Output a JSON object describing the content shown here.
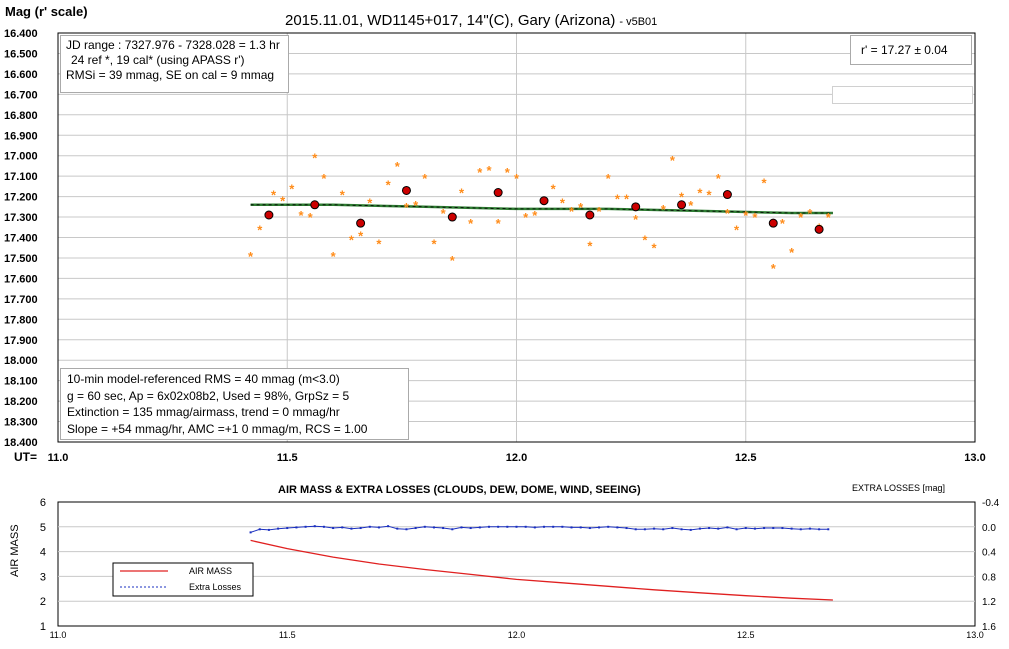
{
  "charts": {
    "main": {
      "ylabel": "Mag (r' scale)",
      "xlabel": "UT=",
      "title": "2015.11.01, WD1145+017, 14\"(C), Gary (Arizona)",
      "title_suffix": "- v5B01",
      "xlim": [
        11.0,
        13.0
      ],
      "ylim": [
        16.4,
        18.4
      ],
      "xticks": [
        "11.0",
        "11.5",
        "12.0",
        "12.5",
        "13.0"
      ],
      "yticks": [
        "16.400",
        "16.500",
        "16.600",
        "16.700",
        "16.800",
        "16.900",
        "17.000",
        "17.100",
        "17.200",
        "17.300",
        "17.400",
        "17.500",
        "17.600",
        "17.700",
        "17.800",
        "17.900",
        "18.000",
        "18.100",
        "18.200",
        "18.300",
        "18.400"
      ]
    },
    "lower": {
      "title": "AIR MASS & EXTRA LOSSES (CLOUDS, DEW, DOME, WIND, SEEING)",
      "ylabel_left": "AIR MASS",
      "ylabel_right": "EXTRA LOSSES [mag]",
      "xlim": [
        11.0,
        13.0
      ],
      "ylim_left": [
        1,
        6
      ],
      "ylim_right": [
        1.6,
        -0.4
      ],
      "xticks": [
        "11.0",
        "11.5",
        "12.0",
        "12.5",
        "13.0"
      ],
      "yticks_left": [
        "6",
        "5",
        "4",
        "3",
        "2",
        "1"
      ],
      "yticks_right": [
        "-0.4",
        "0.0",
        "0.4",
        "0.8",
        "1.2",
        "1.6"
      ],
      "legend": [
        "AIR MASS",
        "Extra Losses"
      ]
    }
  },
  "info_box_top": {
    "line1": "JD range : 7327.976 - 7328.028 = 1.3 hr",
    "line2": "24 ref *, 19 cal* (using APASS r')",
    "line3": "RMSi = 39 mmag, SE on cal = 9 mmag"
  },
  "mag_box": {
    "text": "r' = 17.27 ± 0.04"
  },
  "info_box_bottom": {
    "line1": "10-min model-referenced RMS = 40 mmag (m<3.0)",
    "line2": "g = 60 sec, Ap = 6x02x08b2, Used = 98%,  GrpSz = 5",
    "line3": "Extinction = 135 mmag/airmass, trend = 0 mmag/hr",
    "line4": "Slope = +54 mmag/hr, AMC =+1 0 mmag/m, RCS = 1.00"
  },
  "colors": {
    "raw_points": "#ff8c1a",
    "binned_points": "#cc0000",
    "trend_line": "#2e7d32",
    "airmass": "#e02020",
    "extra_losses": "#1a2fc0",
    "grid": "#c8c8c8"
  },
  "chart_data": [
    {
      "type": "scatter",
      "title": "2015.11.01, WD1145+017, 14\"(C), Gary (Arizona) - v5B01",
      "xlabel": "UT=",
      "ylabel": "Mag (r' scale)",
      "xlim": [
        11.0,
        13.0
      ],
      "ylim": [
        18.4,
        16.4
      ],
      "y_inverted": true,
      "grid": true,
      "series": [
        {
          "name": "raw",
          "marker": "asterisk",
          "x": [
            11.42,
            11.44,
            11.47,
            11.49,
            11.51,
            11.53,
            11.55,
            11.56,
            11.58,
            11.6,
            11.62,
            11.64,
            11.66,
            11.68,
            11.7,
            11.72,
            11.74,
            11.76,
            11.78,
            11.8,
            11.82,
            11.84,
            11.86,
            11.88,
            11.9,
            11.92,
            11.94,
            11.96,
            11.98,
            12.0,
            12.02,
            12.04,
            12.06,
            12.08,
            12.1,
            12.12,
            12.14,
            12.16,
            12.18,
            12.2,
            12.22,
            12.24,
            12.26,
            12.28,
            12.3,
            12.32,
            12.34,
            12.36,
            12.38,
            12.4,
            12.42,
            12.44,
            12.46,
            12.48,
            12.5,
            12.52,
            12.54,
            12.56,
            12.58,
            12.6,
            12.62,
            12.64,
            12.66,
            12.68
          ],
          "values": [
            17.49,
            17.36,
            17.19,
            17.22,
            17.16,
            17.29,
            17.3,
            17.01,
            17.11,
            17.49,
            17.19,
            17.41,
            17.39,
            17.23,
            17.43,
            17.14,
            17.05,
            17.25,
            17.24,
            17.11,
            17.43,
            17.28,
            17.51,
            17.18,
            17.33,
            17.08,
            17.07,
            17.33,
            17.08,
            17.11,
            17.3,
            17.29,
            17.23,
            17.16,
            17.23,
            17.27,
            17.25,
            17.44,
            17.27,
            17.11,
            17.21,
            17.21,
            17.31,
            17.41,
            17.45,
            17.26,
            17.02,
            17.2,
            17.24,
            17.18,
            17.19,
            17.11,
            17.28,
            17.36,
            17.29,
            17.3,
            17.13,
            17.55,
            17.33,
            17.47,
            17.3,
            17.28,
            17.35,
            17.3
          ]
        },
        {
          "name": "binned",
          "marker": "circle",
          "x": [
            11.46,
            11.56,
            11.66,
            11.76,
            11.86,
            11.96,
            12.06,
            12.16,
            12.26,
            12.36,
            12.46,
            12.56,
            12.66
          ],
          "values": [
            17.29,
            17.24,
            17.33,
            17.17,
            17.3,
            17.18,
            17.22,
            17.29,
            17.25,
            17.24,
            17.19,
            17.33,
            17.36
          ]
        },
        {
          "name": "trend",
          "type": "line",
          "x": [
            11.42,
            11.6,
            11.8,
            12.0,
            12.2,
            12.4,
            12.6,
            12.69
          ],
          "values": [
            17.24,
            17.24,
            17.25,
            17.26,
            17.26,
            17.27,
            17.28,
            17.28
          ]
        }
      ]
    },
    {
      "type": "line",
      "title": "AIR MASS & EXTRA LOSSES (CLOUDS, DEW, DOME, WIND, SEEING)",
      "xlabel": "",
      "ylabel": "AIR MASS",
      "ylabel_right": "EXTRA LOSSES [mag]",
      "xlim": [
        11.0,
        13.0
      ],
      "ylim": [
        1,
        6
      ],
      "ylim_right": [
        1.6,
        -0.4
      ],
      "legend_position": "left",
      "series": [
        {
          "name": "AIR MASS",
          "axis": "left",
          "x": [
            11.42,
            11.5,
            11.6,
            11.7,
            11.8,
            11.9,
            12.0,
            12.1,
            12.2,
            12.3,
            12.4,
            12.5,
            12.6,
            12.69
          ],
          "values": [
            4.45,
            4.12,
            3.78,
            3.5,
            3.28,
            3.08,
            2.88,
            2.74,
            2.6,
            2.46,
            2.34,
            2.22,
            2.12,
            2.05
          ]
        },
        {
          "name": "Extra Losses",
          "axis": "right",
          "x": [
            11.42,
            11.44,
            11.46,
            11.48,
            11.5,
            11.52,
            11.54,
            11.56,
            11.58,
            11.6,
            11.62,
            11.64,
            11.66,
            11.68,
            11.7,
            11.72,
            11.74,
            11.76,
            11.78,
            11.8,
            11.82,
            11.84,
            11.86,
            11.88,
            11.9,
            11.92,
            11.94,
            11.96,
            11.98,
            12.0,
            12.02,
            12.04,
            12.06,
            12.08,
            12.1,
            12.12,
            12.14,
            12.16,
            12.18,
            12.2,
            12.22,
            12.24,
            12.26,
            12.28,
            12.3,
            12.32,
            12.34,
            12.36,
            12.38,
            12.4,
            12.42,
            12.44,
            12.46,
            12.48,
            12.5,
            12.52,
            12.54,
            12.56,
            12.58,
            12.6,
            12.62,
            12.64,
            12.66,
            12.68
          ],
          "values": [
            0.09,
            0.04,
            0.05,
            0.03,
            0.02,
            0.01,
            0.0,
            -0.01,
            0.0,
            0.02,
            0.01,
            0.03,
            0.02,
            0.0,
            0.01,
            -0.01,
            0.03,
            0.04,
            0.02,
            0.0,
            0.01,
            0.02,
            0.04,
            0.01,
            0.02,
            0.01,
            0.0,
            0.0,
            0.0,
            0.0,
            0.0,
            0.01,
            0.0,
            0.0,
            0.0,
            0.01,
            0.01,
            0.02,
            0.01,
            0.0,
            0.01,
            0.02,
            0.04,
            0.04,
            0.03,
            0.04,
            0.02,
            0.04,
            0.05,
            0.03,
            0.02,
            0.03,
            0.01,
            0.04,
            0.02,
            0.03,
            0.02,
            0.02,
            0.02,
            0.03,
            0.04,
            0.03,
            0.04,
            0.04
          ]
        }
      ]
    }
  ]
}
